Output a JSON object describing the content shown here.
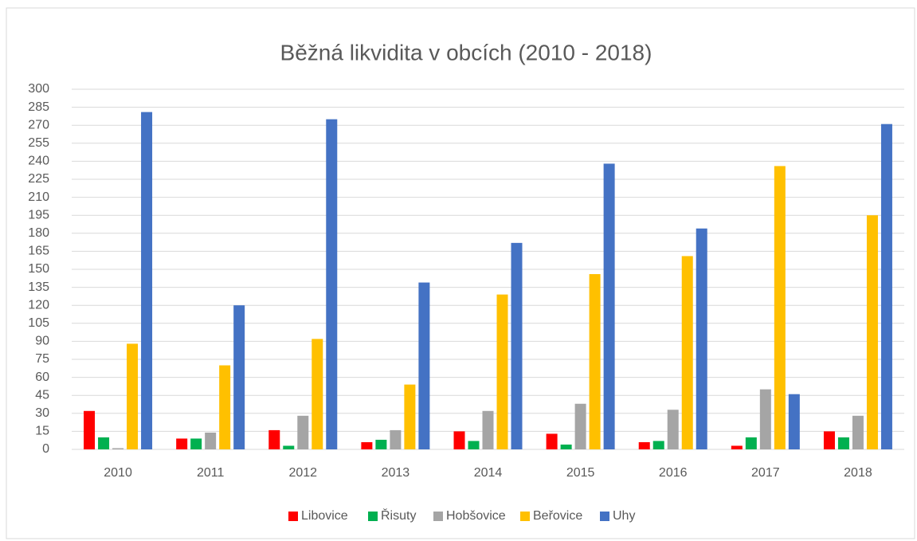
{
  "chart_data": {
    "type": "bar",
    "title": "Běžná likvidita v obcích (2010 - 2018)",
    "categories": [
      "2010",
      "2011",
      "2012",
      "2013",
      "2014",
      "2015",
      "2016",
      "2017",
      "2018"
    ],
    "series": [
      {
        "name": "Libovice",
        "color": "#ff0000",
        "values": [
          32,
          9,
          16,
          6,
          15,
          13,
          6,
          3,
          15
        ]
      },
      {
        "name": "Řisuty",
        "color": "#00b050",
        "values": [
          10,
          9,
          3,
          8,
          7,
          4,
          7,
          10,
          10
        ]
      },
      {
        "name": "Hobšovice",
        "color": "#a5a5a5",
        "values": [
          1,
          14,
          28,
          16,
          32,
          38,
          33,
          50,
          28
        ]
      },
      {
        "name": "Beřovice",
        "color": "#ffc000",
        "values": [
          88,
          70,
          92,
          54,
          129,
          146,
          161,
          236,
          195
        ]
      },
      {
        "name": "Uhy",
        "color": "#4472c4",
        "values": [
          281,
          120,
          275,
          139,
          172,
          238,
          184,
          46,
          271
        ]
      }
    ],
    "ylim": [
      0,
      300
    ],
    "yticks": [
      0,
      15,
      30,
      45,
      60,
      75,
      90,
      105,
      120,
      135,
      150,
      165,
      180,
      195,
      210,
      225,
      240,
      255,
      270,
      285,
      300
    ],
    "grid": true,
    "legend": "bottom"
  }
}
